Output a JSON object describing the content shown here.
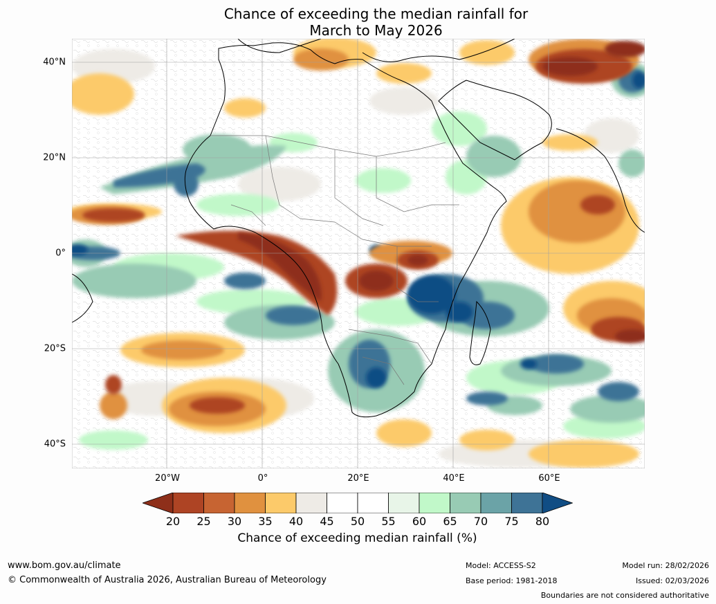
{
  "title": {
    "line1": "Chance of exceeding the median rainfall for",
    "line2": "March to May 2026"
  },
  "map": {
    "region": "Africa",
    "lat_labels": [
      "40°N",
      "20°N",
      "0°",
      "20°S",
      "40°S"
    ],
    "lon_labels": [
      "20°W",
      "0°",
      "20°E",
      "40°E",
      "60°E"
    ]
  },
  "colorbar": {
    "ticks": [
      "20",
      "25",
      "30",
      "35",
      "40",
      "45",
      "50",
      "55",
      "60",
      "65",
      "70",
      "75",
      "80"
    ],
    "colors": [
      "#8e2f1a",
      "#ae4424",
      "#c76432",
      "#e0913f",
      "#fcca6a",
      "#eeebe6",
      "#ffffff",
      "#ffffff",
      "#e8f5e8",
      "#c1f8c9",
      "#98cbb4",
      "#6ba3a7",
      "#3e7396",
      "#104d84"
    ],
    "label": "Chance of exceeding median rainfall (%)"
  },
  "footer": {
    "url": "www.bom.gov.au/climate",
    "copyright": "© Commonwealth of Australia 2026, Australian Bureau of Meteorology",
    "model": "Model: ACCESS-S2",
    "base_period": "Base period: 1981-2018",
    "model_run": "Model run: 28/02/2026",
    "issued": "Issued: 02/03/2026",
    "disclaimer": "Boundaries are not considered authoritative"
  }
}
